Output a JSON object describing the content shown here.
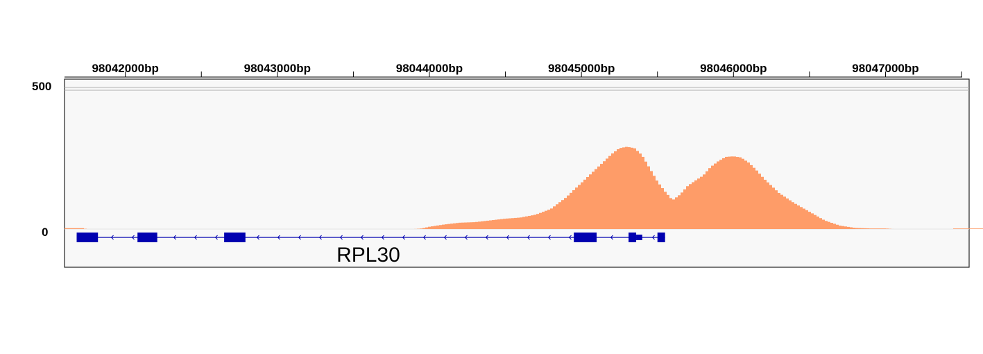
{
  "chart_data": {
    "type": "area",
    "tick_positions": [
      98042000,
      98043000,
      98044000,
      98045000,
      98046000,
      98047000
    ],
    "tick_labels": [
      "98042000bp",
      "98043000bp",
      "98044000bp",
      "98045000bp",
      "98046000bp",
      "98047000bp"
    ],
    "xlim": [
      98041600,
      98047550
    ],
    "ylim": [
      0,
      500
    ],
    "y_labels": [
      "500",
      "0"
    ],
    "colors": {
      "coverage": "#fe9c68",
      "gene": "#0000b0",
      "panel": "#f8f8f8"
    },
    "coverage": {
      "x": [
        98041600,
        98041730,
        98041740,
        98043900,
        98043950,
        98044000,
        98044100,
        98044200,
        98044300,
        98044400,
        98044500,
        98044600,
        98044700,
        98044800,
        98044900,
        98045000,
        98045100,
        98045200,
        98045250,
        98045300,
        98045350,
        98045400,
        98045450,
        98045500,
        98045550,
        98045600,
        98045650,
        98045700,
        98045750,
        98045800,
        98045850,
        98045900,
        98045950,
        98046000,
        98046050,
        98046100,
        98046150,
        98046200,
        98046300,
        98046400,
        98046500,
        98046600,
        98046700,
        98046800,
        98046900,
        98047000,
        98047050,
        98047400,
        98047550
      ],
      "y": [
        3,
        3,
        0,
        0,
        2,
        8,
        16,
        22,
        24,
        30,
        36,
        40,
        50,
        70,
        110,
        160,
        210,
        260,
        280,
        285,
        280,
        255,
        210,
        165,
        130,
        100,
        120,
        150,
        168,
        185,
        215,
        235,
        250,
        252,
        248,
        230,
        205,
        175,
        125,
        90,
        60,
        30,
        12,
        4,
        2,
        2,
        0,
        0,
        0
      ],
      "min_bars": {
        "x": [
          98046350,
          98047050
        ],
        "y": 2
      }
    },
    "gene": {
      "name": "RPL30",
      "strand": "-",
      "span": [
        98041680,
        98045550
      ],
      "exons": [
        [
          98041680,
          98041820
        ],
        [
          98042080,
          98042210
        ],
        [
          98042650,
          98042790
        ],
        [
          98044950,
          98045100
        ],
        [
          98045310,
          98045360
        ],
        [
          98045500,
          98045550
        ]
      ],
      "thin_blocks": [
        [
          98041680,
          98041740
        ],
        [
          98045360,
          98045400
        ]
      ]
    }
  }
}
